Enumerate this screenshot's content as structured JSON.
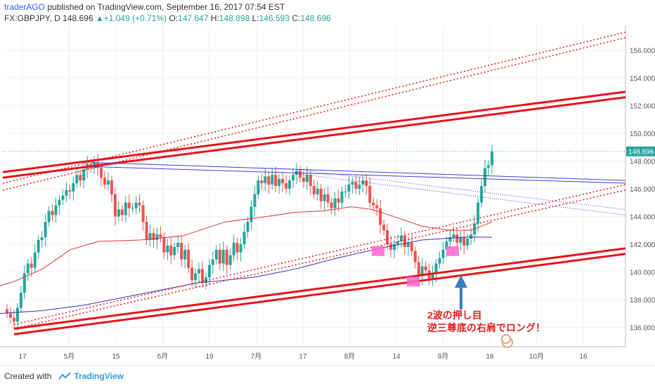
{
  "header": {
    "author": "traderAGO",
    "published_text": " published on TradingView.com, September 16, 2017 07:54 EST",
    "symbol": "FX:GBPJPY, D 148.696",
    "change": "▲+1.049 (+0.71%)",
    "o_label": " O:",
    "o_val": "147.647",
    "h_label": " H:",
    "h_val": "148.898",
    "l_label": " L:",
    "l_val": "146.593",
    "c_label": " C:",
    "c_val": "148.696"
  },
  "footer": {
    "created_with": "Created with",
    "brand": "TradingView"
  },
  "annotation": {
    "line1": "2波の押し目",
    "line2": "逆三尊底の右肩でロング！"
  },
  "colors": {
    "up": "#26a69a",
    "down": "#ef5350",
    "channel": "#e8141a",
    "neckline": "#3f3fcf",
    "ma_red": "#e03030",
    "ma_blue": "#3030c0",
    "marker": "#ff66cc",
    "arrow": "#3a7fc1"
  },
  "chart_data": {
    "type": "candlestick",
    "ylim": [
      134.6,
      157.8
    ],
    "yticks": [
      136,
      138,
      140,
      142,
      144,
      146,
      148,
      150,
      152,
      154,
      156
    ],
    "ytick_labels": [
      "136.000",
      "138.000",
      "140.000",
      "142.000",
      "144.000",
      "146.000",
      "148.000",
      "150.000",
      "152.000",
      "154.000",
      "156.000"
    ],
    "xtick_labels": [
      "17",
      "5月",
      "15",
      "6月",
      "19",
      "7月",
      "17",
      "8月",
      "14",
      "9月",
      "18",
      "10月",
      "16"
    ],
    "last_price_label": "148.696",
    "last_price": 148.696,
    "closes": [
      137.0,
      136.7,
      136.4,
      137.4,
      138.5,
      139.9,
      140.6,
      140.3,
      141.4,
      142.3,
      142.5,
      143.6,
      144.4,
      144.1,
      144.8,
      145.2,
      145.5,
      145.9,
      145.8,
      146.4,
      147.0,
      146.6,
      147.4,
      147.8,
      147.5,
      147.9,
      147.5,
      146.8,
      146.3,
      146.6,
      145.6,
      144.0,
      144.5,
      144.1,
      145.0,
      144.6,
      144.6,
      145.0,
      144.8,
      143.6,
      142.3,
      142.8,
      142.3,
      142.7,
      142.5,
      141.4,
      141.9,
      141.2,
      141.8,
      142.1,
      140.9,
      141.6,
      140.3,
      139.4,
      139.9,
      140.2,
      139.2,
      139.6,
      140.5,
      140.9,
      141.6,
      140.6,
      141.6,
      140.5,
      141.2,
      142.1,
      141.4,
      142.0,
      142.9,
      143.6,
      144.7,
      145.6,
      146.6,
      146.4,
      146.9,
      146.3,
      147.0,
      146.2,
      146.7,
      146.4,
      146.0,
      146.6,
      147.0,
      147.3,
      146.8,
      146.5,
      147.0,
      146.2,
      145.6,
      146.0,
      145.1,
      145.6,
      145.0,
      144.6,
      145.3,
      145.0,
      145.8,
      145.8,
      146.3,
      146.5,
      146.0,
      146.3,
      146.6,
      146.2,
      145.0,
      144.8,
      144.6,
      143.4,
      143.0,
      142.0,
      141.6,
      142.0,
      142.2,
      142.6,
      141.8,
      142.1,
      141.5,
      140.7,
      139.7,
      140.4,
      140.1,
      139.5,
      139.9,
      140.6,
      141.0,
      141.6,
      142.2,
      142.5,
      142.7,
      142.1,
      142.5,
      141.9,
      142.4,
      142.7,
      143.5,
      145.0,
      146.2,
      147.5,
      147.7,
      148.7
    ],
    "ma_red": [
      [
        0,
        139.0
      ],
      [
        20,
        139.3
      ],
      [
        60,
        140.2
      ],
      [
        100,
        141.6
      ],
      [
        140,
        142.2
      ],
      [
        200,
        142.3
      ],
      [
        260,
        142.6
      ],
      [
        320,
        143.6
      ],
      [
        380,
        144.0
      ],
      [
        420,
        144.3
      ],
      [
        460,
        144.4
      ],
      [
        500,
        144.7
      ],
      [
        530,
        144.5
      ],
      [
        560,
        144.0
      ],
      [
        600,
        143.3
      ],
      [
        640,
        143.0
      ],
      [
        670,
        143.0
      ],
      [
        700,
        143.6
      ]
    ],
    "ma_blue": [
      [
        0,
        137.0
      ],
      [
        60,
        137.2
      ],
      [
        120,
        137.6
      ],
      [
        200,
        138.4
      ],
      [
        280,
        139.2
      ],
      [
        360,
        139.6
      ],
      [
        420,
        140.2
      ],
      [
        480,
        141.0
      ],
      [
        540,
        141.7
      ],
      [
        600,
        142.3
      ],
      [
        660,
        142.5
      ],
      [
        700,
        142.5
      ]
    ],
    "channel_lines": [
      {
        "p": [
          [
            4,
            147.2
          ],
          [
            890,
            153.0
          ]
        ]
      },
      {
        "p": [
          [
            4,
            146.8
          ],
          [
            890,
            152.6
          ]
        ]
      },
      {
        "p": [
          [
            20,
            135.9
          ],
          [
            890,
            141.7
          ]
        ]
      },
      {
        "p": [
          [
            20,
            135.5
          ],
          [
            890,
            141.3
          ]
        ]
      }
    ],
    "dotted_channel": [
      {
        "p": [
          [
            4,
            146.4
          ],
          [
            890,
            157.3
          ]
        ]
      },
      {
        "p": [
          [
            4,
            145.9
          ],
          [
            890,
            156.9
          ]
        ]
      },
      {
        "p": [
          [
            20,
            136.2
          ],
          [
            890,
            146.3
          ]
        ]
      },
      {
        "p": [
          [
            20,
            135.9
          ],
          [
            890,
            145.9
          ]
        ]
      }
    ],
    "necklines": [
      {
        "p": [
          [
            130,
            147.9
          ],
          [
            890,
            146.6
          ]
        ],
        "style": "solid"
      },
      {
        "p": [
          [
            130,
            147.6
          ],
          [
            890,
            146.4
          ]
        ],
        "style": "solid"
      },
      {
        "p": [
          [
            420,
            147.4
          ],
          [
            890,
            144.5
          ]
        ],
        "style": "dotted"
      },
      {
        "p": [
          [
            420,
            147.1
          ],
          [
            890,
            144.1
          ]
        ],
        "style": "dotted"
      }
    ],
    "shoulder_markers": [
      [
        538,
        141.5
      ],
      [
        588,
        139.3
      ],
      [
        644,
        141.5
      ]
    ]
  }
}
